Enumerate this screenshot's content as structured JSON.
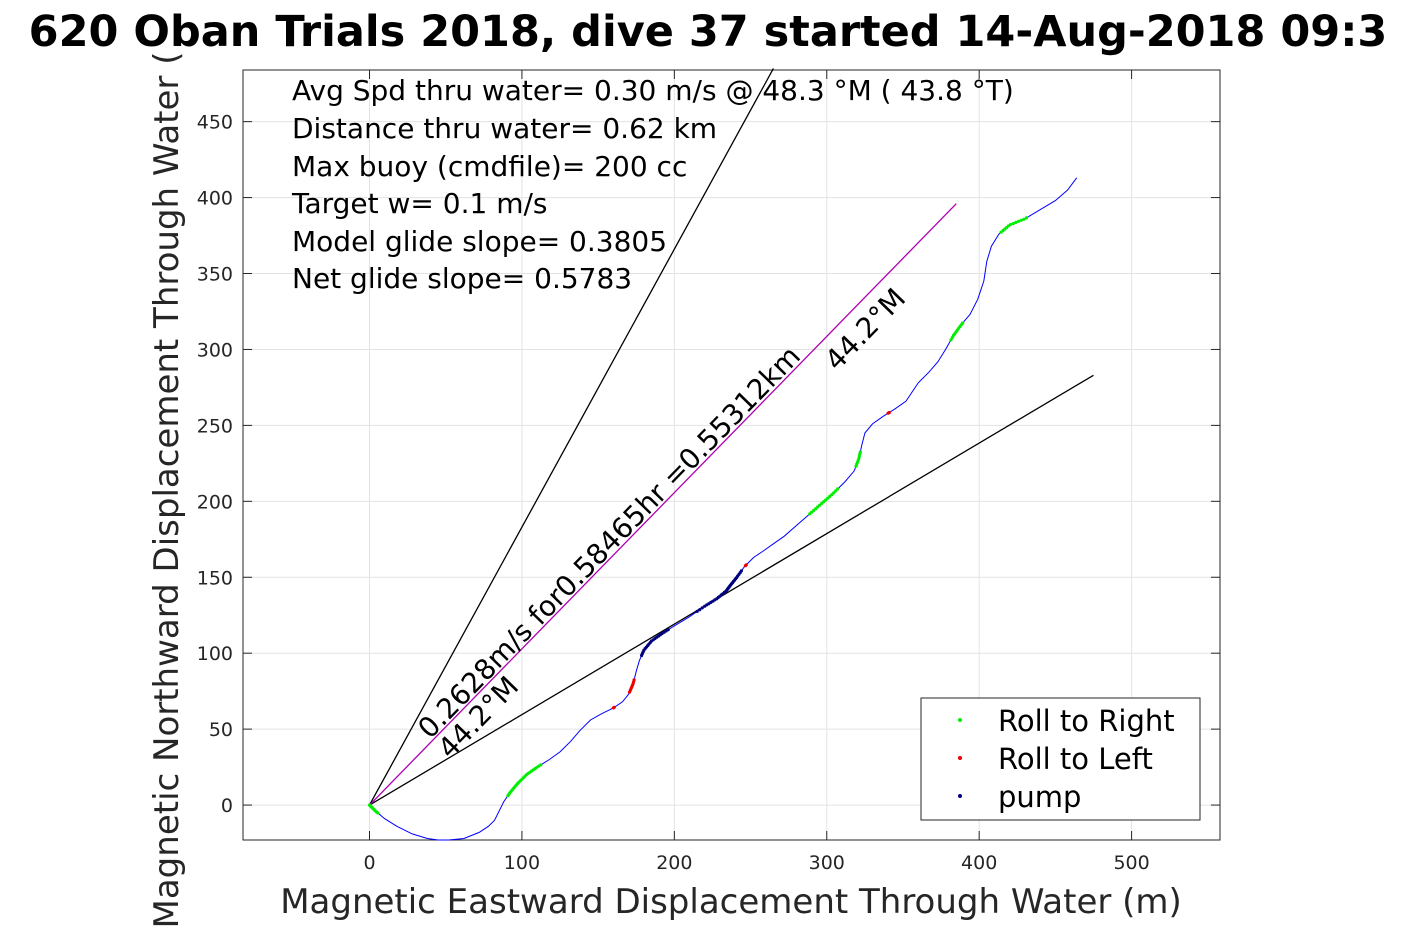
{
  "chart_data": {
    "type": "scatter",
    "title": "620 Oban Trials 2018, dive 37 started 14-Aug-2018 09:3",
    "xlabel": "Magnetic Eastward Displacement Through Water (m)",
    "ylabel": "Magnetic Northward Displacement Through Water (",
    "xlim": [
      -83,
      558
    ],
    "ylim": [
      -23,
      484
    ],
    "xticks": [
      "0",
      "100",
      "200",
      "300",
      "400",
      "500"
    ],
    "yticks": [
      "0",
      "50",
      "100",
      "150",
      "200",
      "250",
      "300",
      "350",
      "400",
      "450"
    ],
    "grid": true,
    "legend_position": "bottom-right",
    "annotations": [
      "Avg Spd thru water=  0.30 m/s @  48.3 °M ( 43.8 °T)",
      "Distance thru water=  0.62 km",
      "Max buoy (cmdfile)= 200 cc",
      "Target w= 0.1 m/s",
      "Model glide slope= 0.3805",
      "Net glide slope= 0.5783"
    ],
    "rotated_labels": {
      "speed_line": "0.2628m/s for0.58465hr =0.55312km",
      "heading_upper": "44.2°M",
      "heading_lower": "44.2°M"
    },
    "reference_lines": [
      {
        "name": "cone-upper",
        "color": "#000000",
        "points": [
          [
            0,
            0
          ],
          [
            265,
            485
          ]
        ]
      },
      {
        "name": "cone-lower",
        "color": "#000000",
        "points": [
          [
            0,
            0
          ],
          [
            475,
            283
          ]
        ]
      },
      {
        "name": "mean-track",
        "color": "#b000b0",
        "points": [
          [
            0,
            0
          ],
          [
            385,
            396
          ]
        ]
      }
    ],
    "track": {
      "color": "#0000ff",
      "points": [
        [
          0,
          0
        ],
        [
          4,
          -4
        ],
        [
          10,
          -9
        ],
        [
          18,
          -14
        ],
        [
          28,
          -19
        ],
        [
          38,
          -22
        ],
        [
          45,
          -23
        ],
        [
          52,
          -23
        ],
        [
          62,
          -22
        ],
        [
          72,
          -18
        ],
        [
          78,
          -14
        ],
        [
          82,
          -10
        ],
        [
          85,
          -4
        ],
        [
          88,
          2
        ],
        [
          92,
          8
        ],
        [
          97,
          14
        ],
        [
          103,
          20
        ],
        [
          110,
          25
        ],
        [
          118,
          30
        ],
        [
          125,
          35
        ],
        [
          132,
          42
        ],
        [
          138,
          49
        ],
        [
          145,
          56
        ],
        [
          152,
          60
        ],
        [
          160,
          64
        ],
        [
          166,
          68
        ],
        [
          170,
          73
        ],
        [
          173,
          80
        ],
        [
          175,
          88
        ],
        [
          177,
          95
        ],
        [
          180,
          102
        ],
        [
          185,
          108
        ],
        [
          192,
          113
        ],
        [
          200,
          118
        ],
        [
          210,
          124
        ],
        [
          220,
          131
        ],
        [
          228,
          136
        ],
        [
          234,
          141
        ],
        [
          237,
          145
        ],
        [
          241,
          150
        ],
        [
          246,
          157
        ],
        [
          252,
          163
        ],
        [
          258,
          167
        ],
        [
          265,
          172
        ],
        [
          272,
          177
        ],
        [
          280,
          184
        ],
        [
          288,
          191
        ],
        [
          296,
          198
        ],
        [
          304,
          205
        ],
        [
          312,
          213
        ],
        [
          318,
          220
        ],
        [
          321,
          228
        ],
        [
          323,
          237
        ],
        [
          325,
          245
        ],
        [
          330,
          251
        ],
        [
          337,
          256
        ],
        [
          345,
          261
        ],
        [
          352,
          266
        ],
        [
          356,
          272
        ],
        [
          360,
          278
        ],
        [
          367,
          285
        ],
        [
          373,
          292
        ],
        [
          378,
          300
        ],
        [
          383,
          309
        ],
        [
          388,
          316
        ],
        [
          394,
          323
        ],
        [
          399,
          333
        ],
        [
          403,
          345
        ],
        [
          405,
          358
        ],
        [
          408,
          368
        ],
        [
          413,
          376
        ],
        [
          420,
          382
        ],
        [
          430,
          386
        ],
        [
          440,
          392
        ],
        [
          450,
          398
        ],
        [
          458,
          405
        ],
        [
          464,
          413
        ]
      ]
    },
    "series": [
      {
        "name": "Roll to Right",
        "color": "#00ee00",
        "ranges": [
          [
            0,
            1.25
          ],
          [
            13.7,
            17.3
          ],
          [
            46.1,
            48.4
          ],
          [
            50.4,
            51.5
          ],
          [
            62.7,
            64.2
          ],
          [
            70.2,
            72.1
          ]
        ]
      },
      {
        "name": "Roll to Left",
        "color": "#ee0000",
        "ranges": [
          [
            24.0,
            24.1
          ],
          [
            26.2,
            27.3
          ],
          [
            40.1,
            40.2
          ],
          [
            55.4,
            55.5
          ]
        ]
      },
      {
        "name": "pump",
        "color": "#000080",
        "ranges": [
          [
            29.5,
            32.5
          ],
          [
            34.5,
            39.6
          ]
        ]
      }
    ]
  }
}
